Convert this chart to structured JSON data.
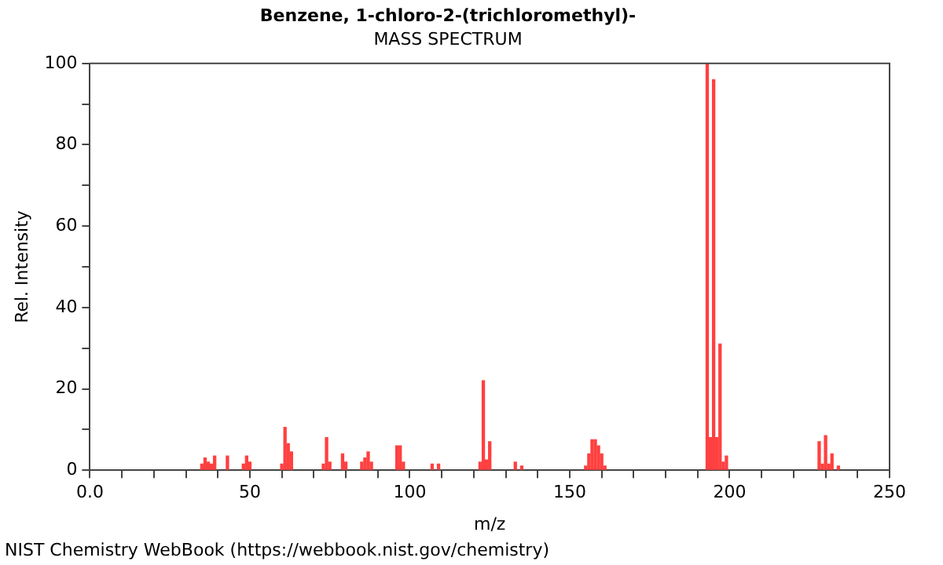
{
  "chart_data": {
    "type": "bar",
    "title": "Benzene, 1-chloro-2-(trichloromethyl)-",
    "subtitle": "MASS SPECTRUM",
    "xlabel": "m/z",
    "ylabel": "Rel. Intensity",
    "annotations": [
      "NIST Chemistry WebBook (https://webbook.nist.gov/chemistry)"
    ],
    "x": [
      35,
      36,
      37,
      38,
      39,
      43,
      48,
      49,
      50,
      60,
      61,
      62,
      63,
      73,
      74,
      75,
      79,
      80,
      85,
      86,
      87,
      88,
      96,
      97,
      98,
      107,
      109,
      122,
      123,
      124,
      125,
      133,
      135,
      155,
      156,
      157,
      158,
      159,
      160,
      161,
      193,
      194,
      195,
      196,
      197,
      198,
      199,
      228,
      229,
      230,
      231,
      232,
      234
    ],
    "values": [
      1.5,
      3,
      2,
      1.5,
      3.5,
      3.5,
      1.5,
      3.5,
      2,
      1.5,
      10.5,
      6.5,
      4.5,
      1.5,
      8,
      2,
      4,
      2,
      2,
      3,
      4.5,
      2,
      6,
      6,
      2,
      1.5,
      1.5,
      2,
      22,
      2.5,
      7,
      2,
      1,
      1,
      4,
      7.5,
      7.5,
      6,
      4,
      1,
      100,
      8,
      96,
      8,
      31,
      2,
      3.5,
      7,
      1.5,
      8.5,
      1.5,
      4,
      1
    ],
    "color": "#ff4040",
    "xlim": [
      0,
      250
    ],
    "xticks": [
      {
        "value": 0,
        "label": "0.0"
      },
      {
        "value": 10,
        "label": null
      },
      {
        "value": 20,
        "label": null
      },
      {
        "value": 30,
        "label": null
      },
      {
        "value": 40,
        "label": null
      },
      50,
      {
        "value": 60,
        "label": null
      },
      {
        "value": 70,
        "label": null
      },
      {
        "value": 80,
        "label": null
      },
      {
        "value": 90,
        "label": null
      },
      100,
      {
        "value": 110,
        "label": null
      },
      {
        "value": 120,
        "label": null
      },
      {
        "value": 130,
        "label": null
      },
      {
        "value": 140,
        "label": null
      },
      150,
      {
        "value": 160,
        "label": null
      },
      {
        "value": 170,
        "label": null
      },
      {
        "value": 180,
        "label": null
      },
      {
        "value": 190,
        "label": null
      },
      200,
      {
        "value": 210,
        "label": null
      },
      {
        "value": 220,
        "label": null
      },
      {
        "value": 230,
        "label": null
      },
      {
        "value": 240,
        "label": null
      },
      250
    ],
    "ylim": [
      0,
      100
    ],
    "yticks": [
      0,
      {
        "value": 10,
        "label": null
      },
      20,
      {
        "value": 30,
        "label": null
      },
      40,
      {
        "value": 50,
        "label": null
      },
      60,
      {
        "value": 70,
        "label": null
      },
      80,
      {
        "value": 90,
        "label": null
      },
      100
    ],
    "grid": false,
    "legend": false
  }
}
